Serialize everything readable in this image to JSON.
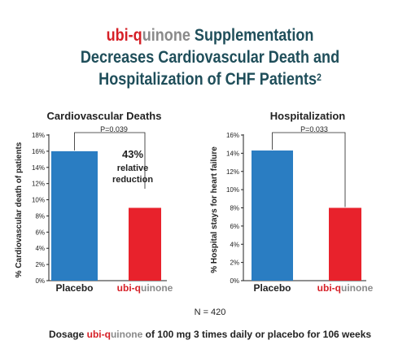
{
  "title": {
    "brand_a": "ubi-q",
    "brand_b": "uinone",
    "line1_rest": " Supplementation",
    "line2": "Decreases Cardiovascular Death and",
    "line3": "Hospitalization of CHF Patients",
    "superscript": "2"
  },
  "colors": {
    "placebo": "#2a7dc2",
    "ubiquinone": "#e8222c",
    "brand_red": "#d62027",
    "brand_grey": "#8a8a8a"
  },
  "chart_data": [
    {
      "type": "bar",
      "title": "Cardiovascular Deaths",
      "ylabel": "% Cardiovascular death of patients",
      "ylim": [
        0,
        18
      ],
      "yticks": [
        "0%",
        "2%",
        "4%",
        "6%",
        "8%",
        "10%",
        "12%",
        "14%",
        "16%",
        "18%"
      ],
      "categories": [
        "Placebo",
        "ubi-quinone"
      ],
      "category_brand": {
        "a": "ubi-q",
        "b": "uinone"
      },
      "values": [
        16,
        9
      ],
      "p_value": "P=0.039",
      "annotation": {
        "line1": "43%",
        "line2": "relative",
        "line3": "reduction"
      }
    },
    {
      "type": "bar",
      "title": "Hospitalization",
      "ylabel": "% Hospital stays for heart failure",
      "ylim": [
        0,
        16
      ],
      "yticks": [
        "0%",
        "2%",
        "4%",
        "6%",
        "8%",
        "10%",
        "12%",
        "14%",
        "16%"
      ],
      "categories": [
        "Placebo",
        "ubi-quinone"
      ],
      "category_brand": {
        "a": "ubi-q",
        "b": "uinone"
      },
      "values": [
        14.3,
        8
      ],
      "p_value": "P=0.033"
    }
  ],
  "footer": {
    "n": "N = 420",
    "dosage_pre": "Dosage ",
    "dosage_brand_a": "ubi-q",
    "dosage_brand_b": "uinone",
    "dosage_post": " of 100 mg 3 times daily or placebo for 106 weeks"
  }
}
